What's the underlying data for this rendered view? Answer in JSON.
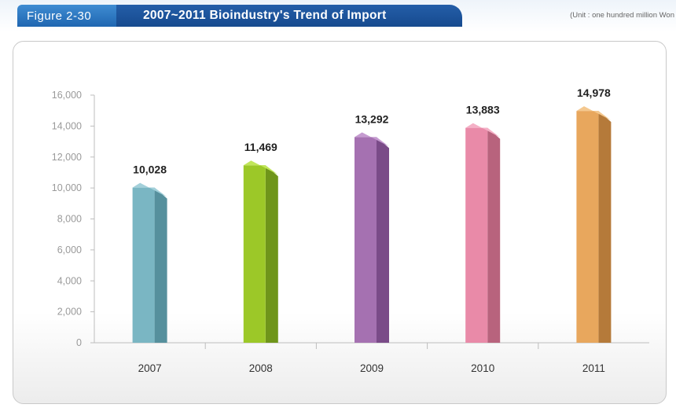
{
  "header": {
    "figure_label": "Figure 2-30",
    "title": "2007~2011 Bioindustry's Trend of Import",
    "unit": "(Unit : one hundred million Won"
  },
  "chart_data": {
    "type": "bar",
    "title": "2007~2011 Bioindustry's Trend of Import",
    "unit": "(Unit : one hundred million Won",
    "categories": [
      "2007",
      "2008",
      "2009",
      "2010",
      "2011"
    ],
    "values": [
      10028,
      11469,
      13292,
      13883,
      14978
    ],
    "value_labels": [
      "10,028",
      "11,469",
      "13,292",
      "13,883",
      "14,978"
    ],
    "yticks": [
      "0",
      "2,000",
      "4,000",
      "6,000",
      "8,000",
      "10,000",
      "12,000",
      "14,000",
      "16,000"
    ],
    "ylim": [
      0,
      16000
    ],
    "grid": false,
    "colors": {
      "front": [
        "#7ab6c3",
        "#9cc828",
        "#a571b1",
        "#e98aa8",
        "#e8a75d"
      ],
      "side": [
        "#56909d",
        "#6f951a",
        "#7a4b88",
        "#b8637d",
        "#b57a3a"
      ],
      "top": [
        "#a3d0da",
        "#c1e65a",
        "#c59bd0",
        "#f4b0c6",
        "#f4c88f"
      ]
    }
  }
}
